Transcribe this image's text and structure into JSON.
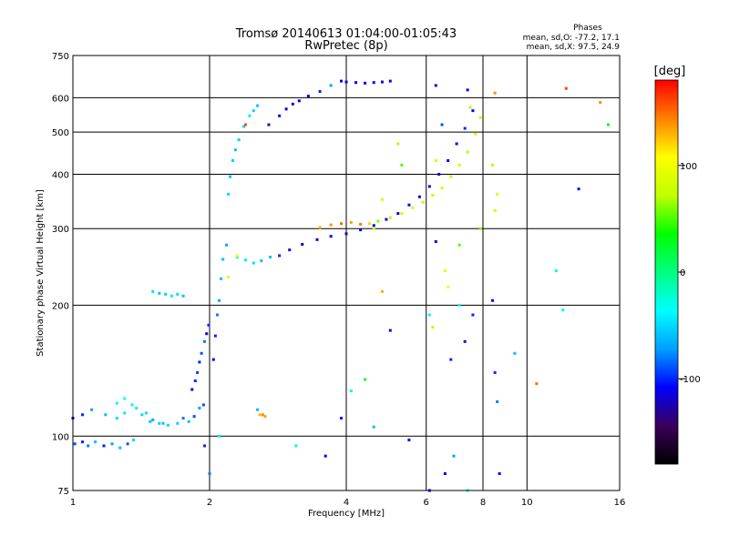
{
  "chart_data": {
    "type": "scatter",
    "title": "Tromsø 20140613 01:04:00-01:05:43",
    "subtitle": "RwPretec (8p)",
    "xlabel": "Frequency [MHz]",
    "ylabel": "Stationary phase Virtual Height [km]",
    "x_scale": "log",
    "y_scale": "log",
    "xlim": [
      1,
      16
    ],
    "ylim": [
      75,
      750
    ],
    "x_ticks": [
      1,
      2,
      4,
      6,
      8,
      10,
      16
    ],
    "x_tick_labels": [
      "1",
      "2",
      "4",
      "6",
      "8",
      "10",
      "16"
    ],
    "y_ticks": [
      75,
      100,
      200,
      300,
      400,
      500,
      600,
      750
    ],
    "y_tick_labels": [
      "75",
      "100",
      "200",
      "300",
      "400",
      "500",
      "600",
      "750"
    ],
    "grid": true,
    "stats": {
      "heading": "Phases",
      "line_o": "mean, sd,O: -77.2, 17.1",
      "line_x": "mean, sd,X:  97.5, 24.9"
    },
    "colorbar": {
      "label": "[deg]",
      "range": [
        -180,
        180
      ],
      "ticks": [
        100,
        0,
        -100
      ],
      "tick_labels": [
        "100",
        "0",
        "-100"
      ],
      "colors": [
        "#000000",
        "#3a005a",
        "#0000ff",
        "#00a0ff",
        "#00ffff",
        "#00ff80",
        "#00ff00",
        "#c0ff00",
        "#ffff00",
        "#ff8000",
        "#ff0000"
      ]
    },
    "series": [
      {
        "points": [
          [
            1.0,
            110,
            -110
          ],
          [
            1.05,
            112,
            -100
          ],
          [
            1.1,
            115,
            -70
          ],
          [
            1.18,
            112,
            -60
          ],
          [
            1.25,
            110,
            -50
          ],
          [
            1.3,
            113,
            -45
          ],
          [
            1.35,
            118,
            -40
          ],
          [
            1.42,
            112,
            -50
          ],
          [
            1.48,
            108,
            -60
          ],
          [
            1.55,
            107,
            -55
          ],
          [
            1.62,
            106,
            -50
          ],
          [
            1.7,
            107,
            -55
          ],
          [
            1.75,
            110,
            -80
          ],
          [
            1.8,
            108,
            -60
          ],
          [
            1.85,
            111,
            -90
          ],
          [
            1.9,
            116,
            -70
          ],
          [
            1.94,
            118,
            -90
          ]
        ]
      },
      {
        "points": [
          [
            1.01,
            96,
            -90
          ],
          [
            1.05,
            97,
            -100
          ],
          [
            1.08,
            95,
            -80
          ],
          [
            1.12,
            97,
            -60
          ],
          [
            1.17,
            95,
            -100
          ],
          [
            1.22,
            96,
            -70
          ],
          [
            1.27,
            94,
            -60
          ],
          [
            1.32,
            96,
            -90
          ],
          [
            1.36,
            98,
            -50
          ]
        ]
      },
      {
        "points": [
          [
            1.25,
            119,
            -40
          ],
          [
            1.3,
            122,
            -35
          ],
          [
            1.38,
            116,
            -45
          ],
          [
            1.45,
            113,
            -50
          ],
          [
            1.5,
            109,
            -70
          ],
          [
            1.58,
            107,
            -60
          ]
        ]
      },
      {
        "points": [
          [
            1.5,
            215,
            -50
          ],
          [
            1.55,
            213,
            -60
          ],
          [
            1.6,
            212,
            -55
          ],
          [
            1.65,
            210,
            -45
          ],
          [
            1.7,
            212,
            -50
          ],
          [
            1.75,
            210,
            -60
          ]
        ]
      },
      {
        "points": [
          [
            1.83,
            128,
            -110
          ],
          [
            1.86,
            134,
            -100
          ],
          [
            1.88,
            140,
            -95
          ],
          [
            1.9,
            148,
            -100
          ],
          [
            1.92,
            155,
            -90
          ],
          [
            1.95,
            165,
            -80
          ],
          [
            1.97,
            172,
            -110
          ],
          [
            1.99,
            180,
            -100
          ]
        ]
      },
      {
        "points": [
          [
            2.04,
            150,
            -110
          ],
          [
            2.06,
            170,
            -100
          ],
          [
            2.08,
            190,
            -80
          ],
          [
            2.1,
            205,
            -70
          ],
          [
            2.12,
            230,
            -60
          ],
          [
            2.14,
            255,
            -60
          ],
          [
            2.18,
            275,
            -70
          ]
        ]
      },
      {
        "points": [
          [
            2.2,
            360,
            -50
          ],
          [
            2.22,
            395,
            -60
          ],
          [
            2.25,
            430,
            -55
          ],
          [
            2.28,
            455,
            -60
          ],
          [
            2.32,
            480,
            -55
          ],
          [
            2.38,
            515,
            -50
          ],
          [
            2.45,
            545,
            -40
          ],
          [
            2.5,
            560,
            -50
          ],
          [
            2.55,
            575,
            -60
          ]
        ]
      },
      {
        "points": [
          [
            2.3,
            258,
            -40
          ],
          [
            2.4,
            254,
            -45
          ],
          [
            2.5,
            250,
            -50
          ],
          [
            2.6,
            253,
            -60
          ],
          [
            2.72,
            258,
            -60
          ]
        ]
      },
      {
        "points": [
          [
            2.7,
            520,
            -120
          ],
          [
            2.85,
            545,
            -110
          ],
          [
            2.95,
            565,
            -115
          ],
          [
            3.05,
            580,
            -120
          ],
          [
            3.15,
            590,
            -110
          ],
          [
            3.3,
            605,
            -115
          ],
          [
            3.5,
            620,
            -100
          ],
          [
            3.7,
            640,
            -70
          ]
        ]
      },
      {
        "points": [
          [
            3.9,
            655,
            -110
          ],
          [
            4.0,
            652,
            -115
          ],
          [
            4.2,
            650,
            -120
          ],
          [
            4.4,
            648,
            -110
          ],
          [
            4.6,
            650,
            -115
          ],
          [
            4.8,
            652,
            -120
          ],
          [
            5.0,
            655,
            -110
          ]
        ]
      },
      {
        "points": [
          [
            2.85,
            260,
            -100
          ],
          [
            3.0,
            268,
            -110
          ],
          [
            3.2,
            276,
            -120
          ],
          [
            3.45,
            283,
            -115
          ],
          [
            3.7,
            288,
            -110
          ],
          [
            4.0,
            292,
            -120
          ],
          [
            4.3,
            298,
            -115
          ],
          [
            4.6,
            305,
            -110
          ],
          [
            4.9,
            315,
            -115
          ],
          [
            5.2,
            325,
            -120
          ],
          [
            5.5,
            340,
            -110
          ],
          [
            5.8,
            355,
            -115
          ],
          [
            6.1,
            375,
            -110
          ],
          [
            6.4,
            400,
            -115
          ],
          [
            6.7,
            430,
            -110
          ],
          [
            7.0,
            470,
            -110
          ],
          [
            7.3,
            510,
            -100
          ],
          [
            7.6,
            560,
            -110
          ]
        ]
      },
      {
        "points": [
          [
            3.5,
            302,
            130
          ],
          [
            3.7,
            306,
            140
          ],
          [
            3.9,
            308,
            150
          ],
          [
            4.1,
            310,
            135
          ],
          [
            4.3,
            307,
            145
          ],
          [
            4.5,
            308,
            120
          ]
        ]
      },
      {
        "points": [
          [
            4.7,
            312,
            60
          ],
          [
            5.0,
            318,
            70
          ],
          [
            5.3,
            325,
            75
          ],
          [
            5.6,
            335,
            80
          ],
          [
            5.9,
            345,
            70
          ],
          [
            6.2,
            358,
            75
          ],
          [
            6.5,
            372,
            80
          ],
          [
            6.8,
            395,
            70
          ],
          [
            7.1,
            420,
            80
          ],
          [
            7.4,
            450,
            70
          ],
          [
            7.7,
            495,
            80
          ],
          [
            7.9,
            540,
            75
          ]
        ]
      },
      {
        "points": [
          [
            2.58,
            112,
            130
          ],
          [
            2.62,
            112,
            140
          ],
          [
            2.65,
            111,
            135
          ]
        ]
      },
      {
        "points": [
          [
            6.3,
            430,
            80
          ],
          [
            6.6,
            240,
            90
          ],
          [
            6.2,
            178,
            70
          ],
          [
            6.8,
            150,
            -100
          ],
          [
            7.3,
            165,
            -110
          ],
          [
            7.6,
            190,
            -100
          ],
          [
            8.4,
            205,
            -110
          ],
          [
            8.5,
            140,
            -100
          ],
          [
            8.6,
            120,
            -80
          ],
          [
            8.7,
            82,
            -110
          ],
          [
            6.9,
            90,
            -70
          ],
          [
            7.9,
            300,
            60
          ],
          [
            8.5,
            330,
            80
          ],
          [
            8.6,
            360,
            90
          ],
          [
            8.4,
            420,
            70
          ],
          [
            9.4,
            155,
            -60
          ],
          [
            10.5,
            132,
            150
          ],
          [
            12.2,
            630,
            160
          ],
          [
            14.5,
            585,
            140
          ],
          [
            15.1,
            520,
            30
          ],
          [
            13.0,
            370,
            -110
          ],
          [
            12.0,
            195,
            -40
          ],
          [
            11.6,
            240,
            -30
          ],
          [
            5.3,
            420,
            50
          ],
          [
            5.2,
            470,
            70
          ],
          [
            4.8,
            350,
            80
          ],
          [
            4.6,
            300,
            90
          ],
          [
            4.8,
            215,
            130
          ],
          [
            5.0,
            175,
            -110
          ],
          [
            4.4,
            135,
            20
          ],
          [
            4.1,
            127,
            -40
          ],
          [
            3.9,
            110,
            -110
          ],
          [
            4.6,
            105,
            -60
          ],
          [
            5.5,
            98,
            -110
          ],
          [
            3.6,
            90,
            -110
          ],
          [
            3.1,
            95,
            -20
          ],
          [
            2.3,
            260,
            100
          ],
          [
            2.4,
            520,
            160
          ],
          [
            2.55,
            115,
            -60
          ],
          [
            2.1,
            100,
            -40
          ],
          [
            2.0,
            82,
            -80
          ],
          [
            1.95,
            95,
            -100
          ],
          [
            2.2,
            232,
            90
          ],
          [
            6.6,
            82,
            -110
          ],
          [
            6.1,
            75,
            -110
          ],
          [
            7.4,
            75,
            -30
          ],
          [
            6.3,
            640,
            -120
          ],
          [
            7.4,
            625,
            -110
          ],
          [
            7.5,
            570,
            70
          ],
          [
            8.5,
            615,
            140
          ],
          [
            6.5,
            520,
            -90
          ],
          [
            6.3,
            280,
            -120
          ],
          [
            7.1,
            275,
            50
          ],
          [
            6.7,
            220,
            110
          ],
          [
            7.1,
            200,
            -30
          ],
          [
            6.1,
            190,
            -40
          ]
        ]
      }
    ]
  }
}
